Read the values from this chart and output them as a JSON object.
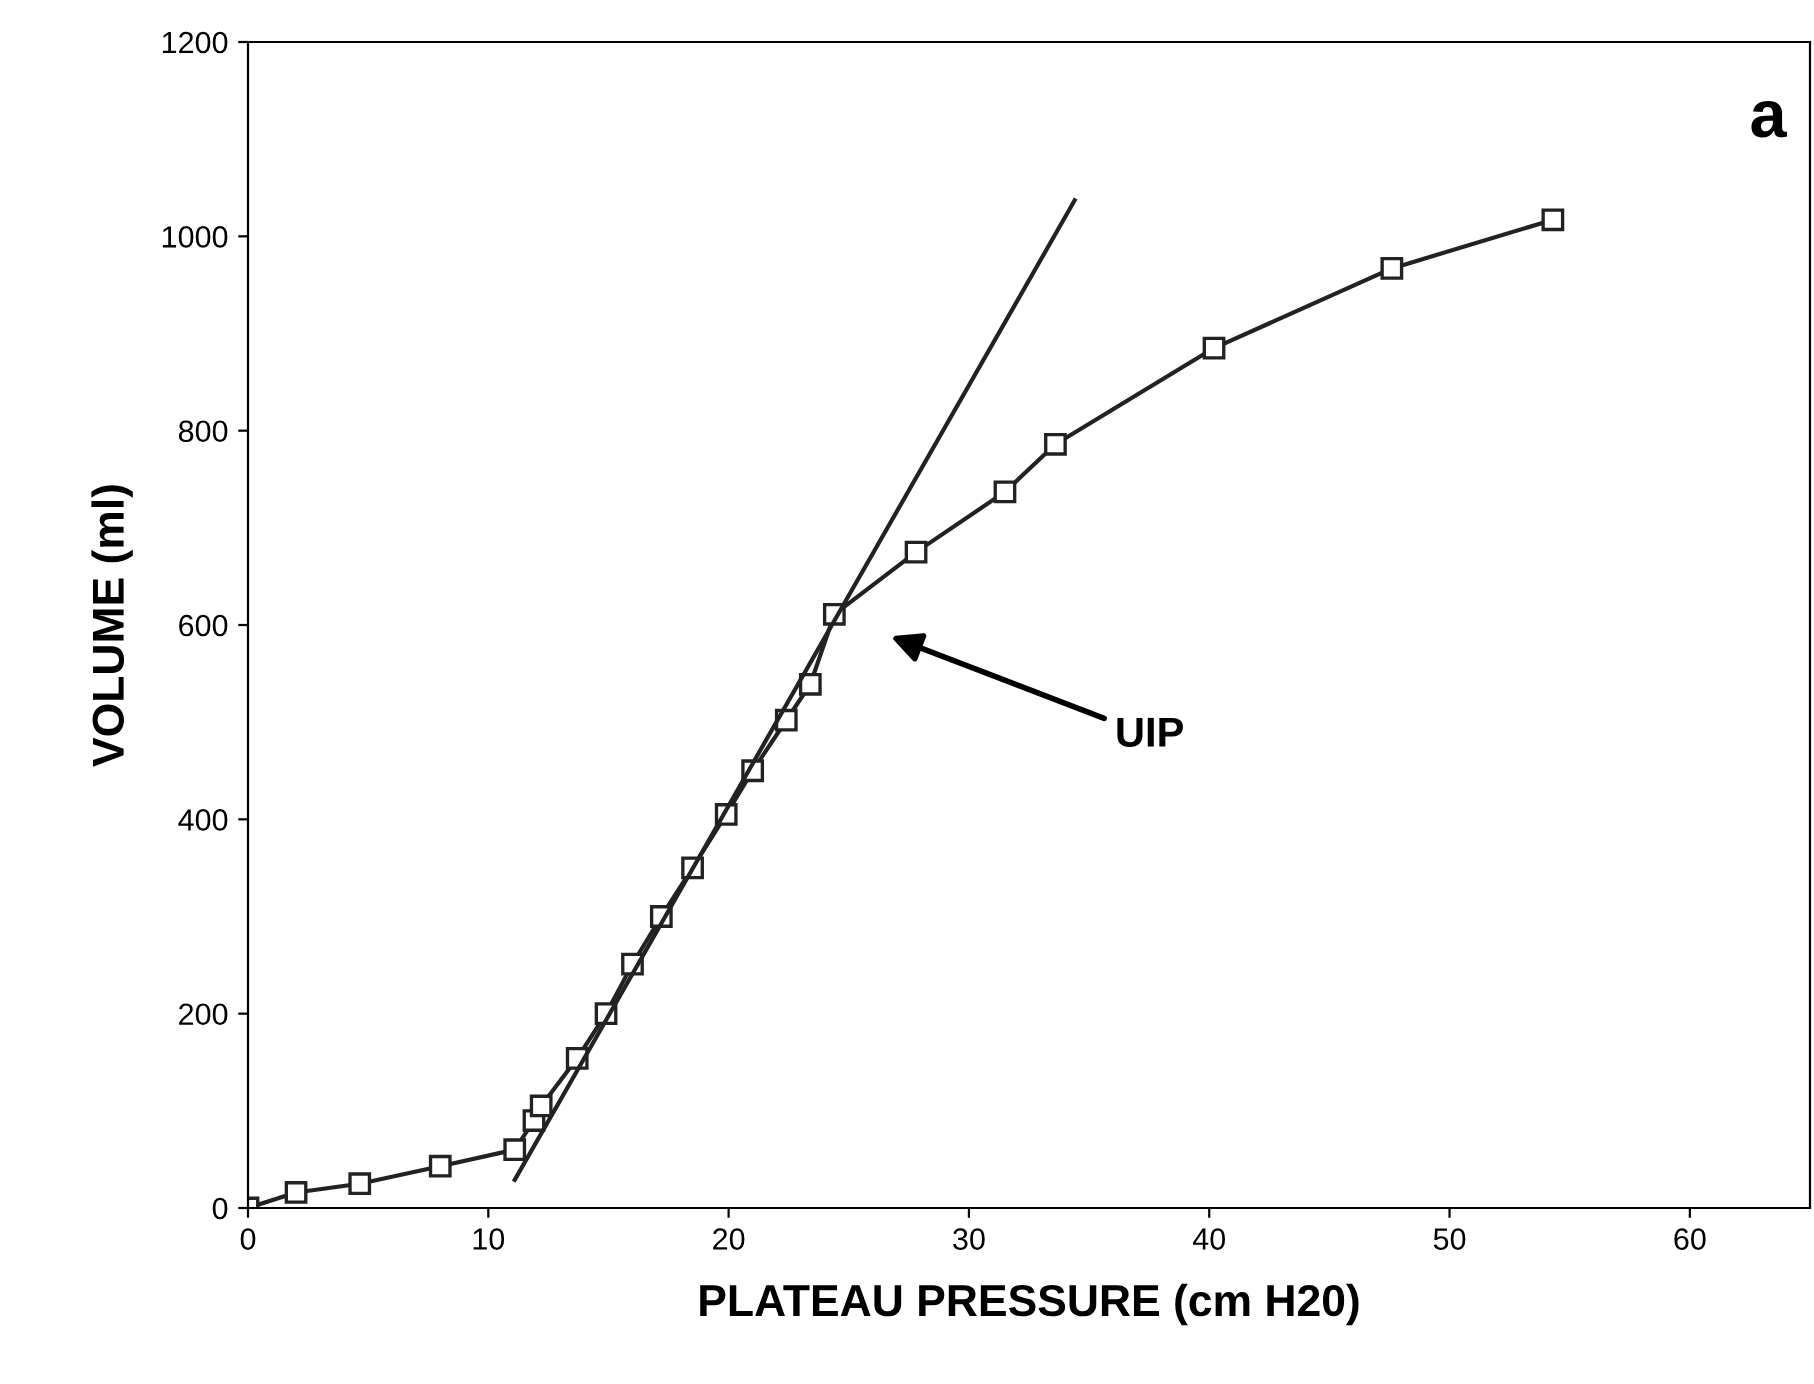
{
  "chart_data": {
    "type": "line",
    "xlabel": "PLATEAU PRESSURE (cm H20)",
    "ylabel": "VOLUME (ml)",
    "xlim": [
      0,
      65
    ],
    "ylim": [
      0,
      1200
    ],
    "xticks": [
      0,
      10,
      20,
      30,
      40,
      50,
      60
    ],
    "yticks": [
      0,
      200,
      400,
      600,
      800,
      1000,
      1200
    ],
    "grid": false,
    "marker": "square",
    "line_style": "solid",
    "series": [
      {
        "color": "#222222",
        "x": [
          0,
          2,
          4.65,
          8,
          11.1,
          11.9,
          12.2,
          13.7,
          14.9,
          16,
          17.2,
          18.5,
          19.9,
          21,
          22.4,
          23.4,
          24.4,
          27.8,
          31.5,
          33.6,
          40.2,
          47.6,
          54.3
        ],
        "values": [
          0,
          16,
          25,
          43,
          60,
          90,
          105,
          154,
          200,
          251,
          300,
          350,
          405,
          450,
          502,
          539,
          611,
          675,
          737,
          786,
          885,
          967,
          1017
        ]
      },
      {
        "type": "line",
        "marker": "none",
        "color": "#222222",
        "x": [
          11.1,
          34.4
        ],
        "values": [
          29,
          1037
        ]
      }
    ],
    "annotations": [
      "a",
      "UIP"
    ]
  }
}
